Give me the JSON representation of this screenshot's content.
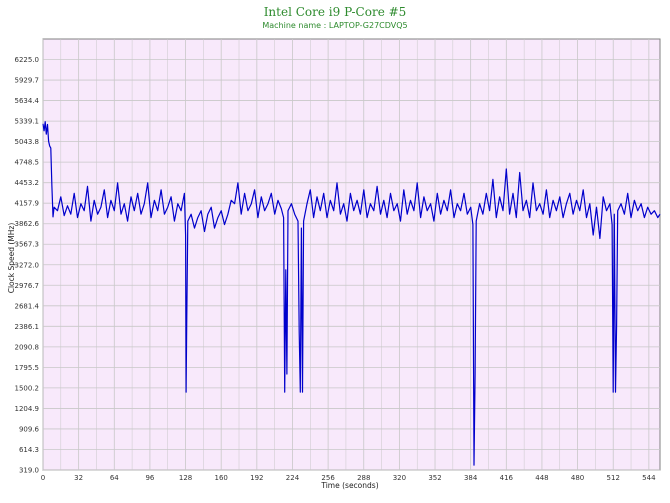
{
  "chart_data": {
    "type": "line",
    "title": "Intel Core i9 P-Core #5",
    "subtitle": "Machine name : LAPTOP-G27CDVQ5",
    "xlabel": "Time (seconds)",
    "ylabel": "Clock Speed (MHz)",
    "xlim": [
      0,
      554
    ],
    "ylim": [
      319.0,
      6520.3
    ],
    "x_ticks": [
      0,
      32,
      64,
      96,
      128,
      160,
      192,
      224,
      256,
      288,
      320,
      352,
      384,
      416,
      448,
      480,
      512,
      544
    ],
    "y_ticks": [
      319.0,
      614.3,
      909.6,
      1204.9,
      1500.2,
      1795.5,
      2090.8,
      2386.1,
      2681.4,
      2976.7,
      3272.0,
      3567.3,
      3862.6,
      4157.9,
      4453.2,
      4748.5,
      5043.8,
      5339.1,
      5634.4,
      5929.7,
      6225.0
    ],
    "grid": true,
    "colors": {
      "line": "#0000cc",
      "plot_bg": "#f8e9fb",
      "grid": "#c8c8c8",
      "title": "#2e8b2e"
    },
    "series": [
      {
        "values": [
          [
            0,
            5300
          ],
          [
            1,
            5200
          ],
          [
            2,
            5330
          ],
          [
            3,
            5150
          ],
          [
            4,
            5290
          ],
          [
            5,
            5050
          ],
          [
            6,
            4980
          ],
          [
            7,
            4950
          ],
          [
            8,
            4400
          ],
          [
            9,
            3960
          ],
          [
            10,
            4100
          ],
          [
            13,
            4050
          ],
          [
            16,
            4250
          ],
          [
            19,
            3980
          ],
          [
            22,
            4120
          ],
          [
            25,
            4000
          ],
          [
            28,
            4300
          ],
          [
            31,
            3950
          ],
          [
            34,
            4150
          ],
          [
            37,
            4050
          ],
          [
            40,
            4400
          ],
          [
            43,
            3900
          ],
          [
            46,
            4200
          ],
          [
            49,
            4000
          ],
          [
            52,
            4100
          ],
          [
            55,
            4350
          ],
          [
            58,
            3950
          ],
          [
            61,
            4200
          ],
          [
            64,
            4050
          ],
          [
            67,
            4450
          ],
          [
            70,
            4000
          ],
          [
            73,
            4150
          ],
          [
            76,
            3900
          ],
          [
            79,
            4250
          ],
          [
            82,
            4050
          ],
          [
            85,
            4300
          ],
          [
            88,
            4000
          ],
          [
            91,
            4150
          ],
          [
            94,
            4450
          ],
          [
            97,
            3950
          ],
          [
            100,
            4200
          ],
          [
            103,
            4050
          ],
          [
            106,
            4350
          ],
          [
            109,
            4000
          ],
          [
            112,
            4100
          ],
          [
            115,
            4250
          ],
          [
            118,
            3900
          ],
          [
            121,
            4150
          ],
          [
            124,
            4050
          ],
          [
            127,
            4300
          ],
          [
            128,
            3700
          ],
          [
            128.5,
            1440
          ],
          [
            129,
            2400
          ],
          [
            130,
            3900
          ],
          [
            133,
            4000
          ],
          [
            136,
            3800
          ],
          [
            139,
            3950
          ],
          [
            142,
            4050
          ],
          [
            145,
            3750
          ],
          [
            148,
            4000
          ],
          [
            151,
            4100
          ],
          [
            154,
            3800
          ],
          [
            157,
            3950
          ],
          [
            160,
            4050
          ],
          [
            163,
            3850
          ],
          [
            166,
            4000
          ],
          [
            169,
            4200
          ],
          [
            172,
            4150
          ],
          [
            175,
            4450
          ],
          [
            178,
            4000
          ],
          [
            181,
            4300
          ],
          [
            184,
            4050
          ],
          [
            187,
            4150
          ],
          [
            190,
            4350
          ],
          [
            193,
            3950
          ],
          [
            196,
            4250
          ],
          [
            199,
            4050
          ],
          [
            202,
            4150
          ],
          [
            205,
            4300
          ],
          [
            208,
            4000
          ],
          [
            211,
            4200
          ],
          [
            214,
            4080
          ],
          [
            216,
            3950
          ],
          [
            217,
            1440
          ],
          [
            218,
            3200
          ],
          [
            219,
            1700
          ],
          [
            220,
            4050
          ],
          [
            223,
            4150
          ],
          [
            226,
            4000
          ],
          [
            229,
            3900
          ],
          [
            230,
            2300
          ],
          [
            231,
            1440
          ],
          [
            232,
            3800
          ],
          [
            233,
            1440
          ],
          [
            234,
            3900
          ],
          [
            237,
            4150
          ],
          [
            240,
            4350
          ],
          [
            243,
            3950
          ],
          [
            246,
            4250
          ],
          [
            249,
            4050
          ],
          [
            252,
            4300
          ],
          [
            255,
            3950
          ],
          [
            258,
            4200
          ],
          [
            261,
            4050
          ],
          [
            264,
            4450
          ],
          [
            267,
            4000
          ],
          [
            270,
            4150
          ],
          [
            273,
            3900
          ],
          [
            276,
            4300
          ],
          [
            279,
            4050
          ],
          [
            282,
            4200
          ],
          [
            285,
            4000
          ],
          [
            288,
            4350
          ],
          [
            291,
            3950
          ],
          [
            294,
            4150
          ],
          [
            297,
            4050
          ],
          [
            300,
            4400
          ],
          [
            303,
            4000
          ],
          [
            306,
            4200
          ],
          [
            309,
            3950
          ],
          [
            312,
            4300
          ],
          [
            315,
            4050
          ],
          [
            318,
            4150
          ],
          [
            321,
            3900
          ],
          [
            324,
            4350
          ],
          [
            327,
            4000
          ],
          [
            330,
            4200
          ],
          [
            333,
            4050
          ],
          [
            336,
            4450
          ],
          [
            339,
            3950
          ],
          [
            342,
            4250
          ],
          [
            345,
            4050
          ],
          [
            348,
            4150
          ],
          [
            351,
            3900
          ],
          [
            354,
            4300
          ],
          [
            357,
            4000
          ],
          [
            360,
            4200
          ],
          [
            363,
            4050
          ],
          [
            366,
            4350
          ],
          [
            369,
            3950
          ],
          [
            372,
            4150
          ],
          [
            375,
            4050
          ],
          [
            378,
            4300
          ],
          [
            381,
            4000
          ],
          [
            384,
            4100
          ],
          [
            386,
            3850
          ],
          [
            387,
            390
          ],
          [
            388,
            1700
          ],
          [
            389,
            3900
          ],
          [
            392,
            4150
          ],
          [
            395,
            4000
          ],
          [
            398,
            4300
          ],
          [
            401,
            4050
          ],
          [
            404,
            4500
          ],
          [
            407,
            3950
          ],
          [
            410,
            4250
          ],
          [
            413,
            4050
          ],
          [
            416,
            4650
          ],
          [
            419,
            4000
          ],
          [
            422,
            4300
          ],
          [
            425,
            3950
          ],
          [
            428,
            4600
          ],
          [
            431,
            4050
          ],
          [
            434,
            4200
          ],
          [
            437,
            3950
          ],
          [
            440,
            4450
          ],
          [
            443,
            4050
          ],
          [
            446,
            4150
          ],
          [
            449,
            4000
          ],
          [
            452,
            4350
          ],
          [
            455,
            3950
          ],
          [
            458,
            4200
          ],
          [
            461,
            4050
          ],
          [
            464,
            4250
          ],
          [
            467,
            3950
          ],
          [
            470,
            4150
          ],
          [
            473,
            4300
          ],
          [
            476,
            4000
          ],
          [
            479,
            4200
          ],
          [
            482,
            4050
          ],
          [
            485,
            4350
          ],
          [
            488,
            3950
          ],
          [
            491,
            4150
          ],
          [
            494,
            3700
          ],
          [
            497,
            4100
          ],
          [
            500,
            3650
          ],
          [
            503,
            4250
          ],
          [
            506,
            4050
          ],
          [
            509,
            4150
          ],
          [
            511,
            3850
          ],
          [
            512,
            1440
          ],
          [
            513,
            4000
          ],
          [
            514,
            1440
          ],
          [
            515,
            2400
          ],
          [
            516,
            4050
          ],
          [
            519,
            4150
          ],
          [
            522,
            4000
          ],
          [
            525,
            4300
          ],
          [
            528,
            3950
          ],
          [
            531,
            4200
          ],
          [
            534,
            4050
          ],
          [
            537,
            4150
          ],
          [
            540,
            3950
          ],
          [
            543,
            4100
          ],
          [
            546,
            4000
          ],
          [
            549,
            4050
          ],
          [
            552,
            3950
          ],
          [
            554,
            4000
          ]
        ]
      }
    ]
  }
}
